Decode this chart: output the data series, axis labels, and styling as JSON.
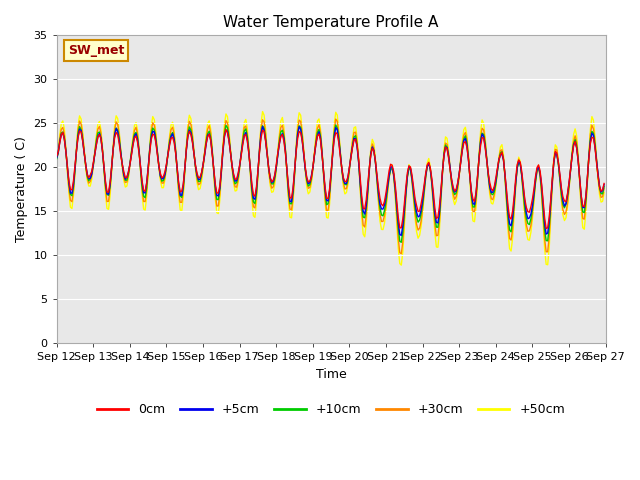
{
  "title": "Water Temperature Profile A",
  "xlabel": "Time",
  "ylabel": "Temperature ( C)",
  "ylim": [
    0,
    35
  ],
  "yticks": [
    0,
    5,
    10,
    15,
    20,
    25,
    30,
    35
  ],
  "xtick_labels": [
    "Sep 12",
    "Sep 13",
    "Sep 14",
    "Sep 15",
    "Sep 16",
    "Sep 17",
    "Sep 18",
    "Sep 19",
    "Sep 20",
    "Sep 21",
    "Sep 22",
    "Sep 23",
    "Sep 24",
    "Sep 25",
    "Sep 26",
    "Sep 27"
  ],
  "series_labels": [
    "0cm",
    "+5cm",
    "+10cm",
    "+30cm",
    "+50cm"
  ],
  "series_colors": [
    "#ff0000",
    "#0000ee",
    "#00cc00",
    "#ff8800",
    "#ffff00"
  ],
  "annotation_text": "SW_met",
  "annotation_color": "#990000",
  "annotation_bg": "#ffffcc",
  "annotation_border": "#cc8800",
  "plot_bg": "#e8e8e8",
  "title_fontsize": 11,
  "axis_fontsize": 9,
  "tick_fontsize": 8,
  "legend_fontsize": 9
}
